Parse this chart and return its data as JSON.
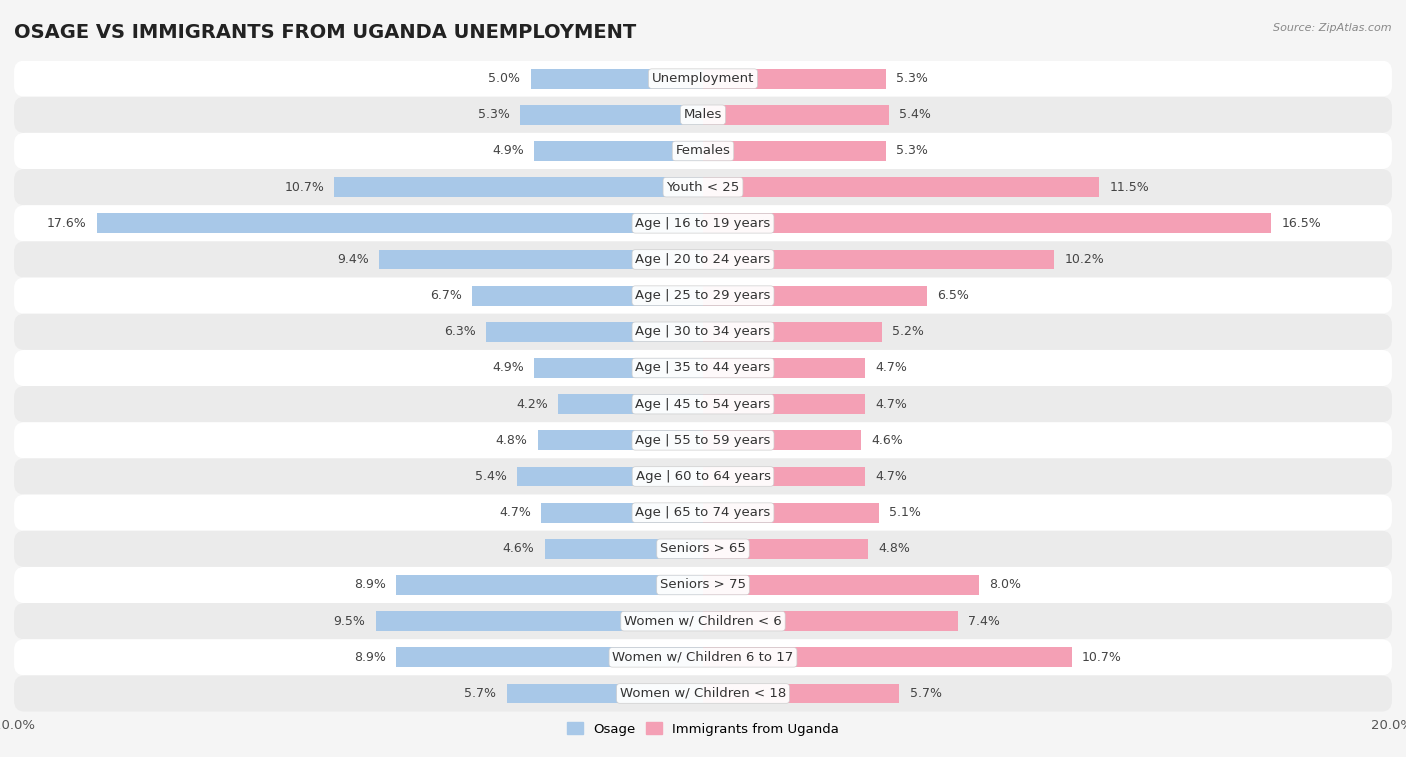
{
  "title": "OSAGE VS IMMIGRANTS FROM UGANDA UNEMPLOYMENT",
  "source": "Source: ZipAtlas.com",
  "categories": [
    "Unemployment",
    "Males",
    "Females",
    "Youth < 25",
    "Age | 16 to 19 years",
    "Age | 20 to 24 years",
    "Age | 25 to 29 years",
    "Age | 30 to 34 years",
    "Age | 35 to 44 years",
    "Age | 45 to 54 years",
    "Age | 55 to 59 years",
    "Age | 60 to 64 years",
    "Age | 65 to 74 years",
    "Seniors > 65",
    "Seniors > 75",
    "Women w/ Children < 6",
    "Women w/ Children 6 to 17",
    "Women w/ Children < 18"
  ],
  "osage_values": [
    5.0,
    5.3,
    4.9,
    10.7,
    17.6,
    9.4,
    6.7,
    6.3,
    4.9,
    4.2,
    4.8,
    5.4,
    4.7,
    4.6,
    8.9,
    9.5,
    8.9,
    5.7
  ],
  "uganda_values": [
    5.3,
    5.4,
    5.3,
    11.5,
    16.5,
    10.2,
    6.5,
    5.2,
    4.7,
    4.7,
    4.6,
    4.7,
    5.1,
    4.8,
    8.0,
    7.4,
    10.7,
    5.7
  ],
  "osage_color": "#a8c8e8",
  "uganda_color": "#f4a0b5",
  "osage_highlight_color": "#5b9bd5",
  "uganda_highlight_color": "#e8607a",
  "bar_height": 0.55,
  "xlim": 20.0,
  "bg_color": "#f5f5f5",
  "row_colors_odd": "#ffffff",
  "row_colors_even": "#ebebeb",
  "legend_osage": "Osage",
  "legend_uganda": "Immigrants from Uganda",
  "title_fontsize": 14,
  "label_fontsize": 9.5,
  "tick_fontsize": 9.5,
  "value_fontsize": 9
}
